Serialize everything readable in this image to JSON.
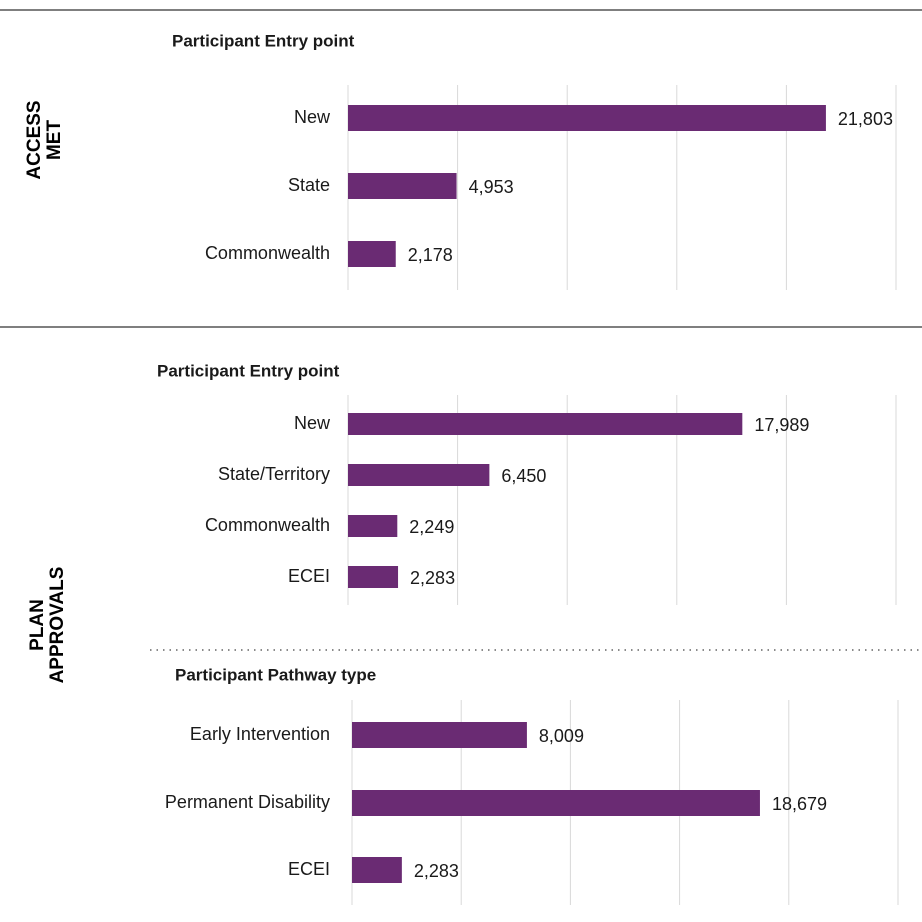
{
  "sections": [
    "ACCESS MET",
    "PLAN APPROVALS"
  ],
  "chart_data": [
    {
      "type": "bar",
      "orientation": "horizontal",
      "title": "Participant Entry point",
      "categories": [
        "New",
        "State",
        "Commonwealth"
      ],
      "values": [
        21803,
        4953,
        2178
      ],
      "value_labels": [
        "21,803",
        "4,953",
        "2,178"
      ],
      "color": "#6a2b73",
      "xlim": [
        0,
        25000
      ],
      "xticks": [
        0,
        5000,
        10000,
        15000,
        20000,
        25000
      ],
      "grid": true
    },
    {
      "type": "bar",
      "orientation": "horizontal",
      "title": "Participant Entry point",
      "categories": [
        "New",
        "State/Territory",
        "Commonwealth",
        "ECEI"
      ],
      "values": [
        17989,
        6450,
        2249,
        2283
      ],
      "value_labels": [
        "17,989",
        "6,450",
        "2,249",
        "2,283"
      ],
      "color": "#6a2b73",
      "xlim": [
        0,
        25000
      ],
      "xticks": [
        0,
        5000,
        10000,
        15000,
        20000,
        25000
      ],
      "grid": true
    },
    {
      "type": "bar",
      "orientation": "horizontal",
      "title": "Participant Pathway type",
      "categories": [
        "Early Intervention",
        "Permanent Disability",
        "ECEI"
      ],
      "values": [
        8009,
        18679,
        2283
      ],
      "value_labels": [
        "8,009",
        "18,679",
        "2,283"
      ],
      "color": "#6a2b73",
      "xlim": [
        0,
        25000
      ],
      "xticks": [
        0,
        5000,
        10000,
        15000,
        20000,
        25000
      ],
      "grid": true
    }
  ]
}
